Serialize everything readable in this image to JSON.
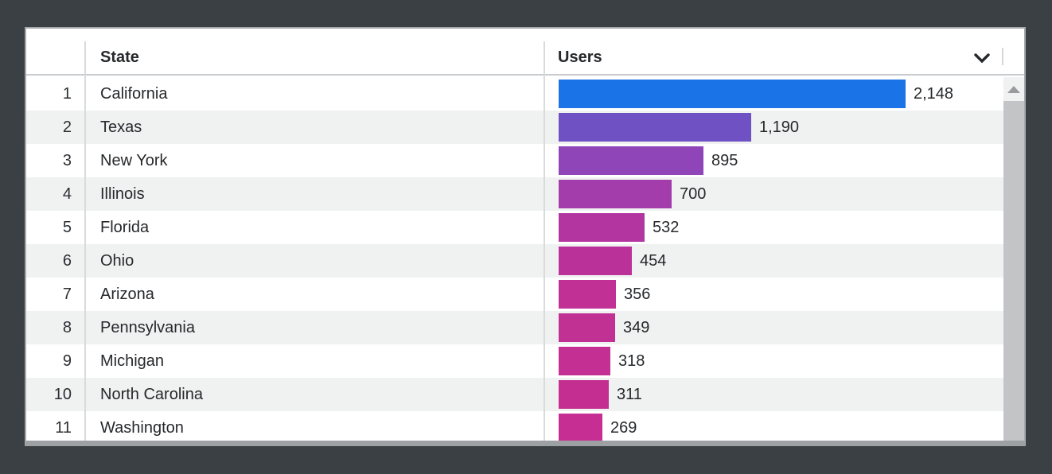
{
  "table": {
    "columns": {
      "state": "State",
      "users": "Users"
    },
    "rows": [
      {
        "rank": "1",
        "state": "California",
        "users": "2,148",
        "value": 2148,
        "color": "#1b73e8"
      },
      {
        "rank": "2",
        "state": "Texas",
        "users": "1,190",
        "value": 1190,
        "color": "#7051c3"
      },
      {
        "rank": "3",
        "state": "New York",
        "users": "895",
        "value": 895,
        "color": "#8f44b8"
      },
      {
        "rank": "4",
        "state": "Illinois",
        "users": "700",
        "value": 700,
        "color": "#a33dac"
      },
      {
        "rank": "5",
        "state": "Florida",
        "users": "532",
        "value": 532,
        "color": "#b235a0"
      },
      {
        "rank": "6",
        "state": "Ohio",
        "users": "454",
        "value": 454,
        "color": "#ba3299"
      },
      {
        "rank": "7",
        "state": "Arizona",
        "users": "356",
        "value": 356,
        "color": "#c03095"
      },
      {
        "rank": "8",
        "state": "Pennsylvania",
        "users": "349",
        "value": 349,
        "color": "#c13093"
      },
      {
        "rank": "9",
        "state": "Michigan",
        "users": "318",
        "value": 318,
        "color": "#c32f92"
      },
      {
        "rank": "10",
        "state": "North Carolina",
        "users": "311",
        "value": 311,
        "color": "#c42e90"
      },
      {
        "rank": "11",
        "state": "Washington",
        "users": "269",
        "value": 269,
        "color": "#c62e93"
      }
    ]
  },
  "chart_data": {
    "type": "bar",
    "orientation": "horizontal",
    "title": "",
    "categories": [
      "California",
      "Texas",
      "New York",
      "Illinois",
      "Florida",
      "Ohio",
      "Arizona",
      "Pennsylvania",
      "Michigan",
      "North Carolina",
      "Washington"
    ],
    "values": [
      2148,
      1190,
      895,
      700,
      532,
      454,
      356,
      349,
      318,
      311,
      269
    ],
    "value_labels": [
      "2,148",
      "1,190",
      "895",
      "700",
      "532",
      "454",
      "356",
      "349",
      "318",
      "311",
      "269"
    ],
    "xlabel": "Users",
    "ylabel": "State",
    "xlim": [
      0,
      2148
    ],
    "grid": false,
    "legend": false,
    "bar_colors": [
      "#1b73e8",
      "#7051c3",
      "#8f44b8",
      "#a33dac",
      "#b235a0",
      "#ba3299",
      "#c03095",
      "#c13093",
      "#c32f92",
      "#c42e90",
      "#c62e93"
    ]
  },
  "icons": {
    "sort_indicator": "chevron-down-icon",
    "scroll_up": "triangle-up-icon"
  },
  "colors": {
    "window_background": "#3b4044",
    "card_background": "#ffffff",
    "card_border": "#a6a9ac",
    "row_alt_background": "#f0f1f1",
    "divider": "#d8dadc",
    "header_border": "#c9ccce",
    "text": "#26282b",
    "scrollbar_track": "#f0f1f1",
    "scrollbar_thumb": "#c2c4c5",
    "top_bar_color": "#1b73e8",
    "bottom_bar_color": "#c62e93"
  }
}
